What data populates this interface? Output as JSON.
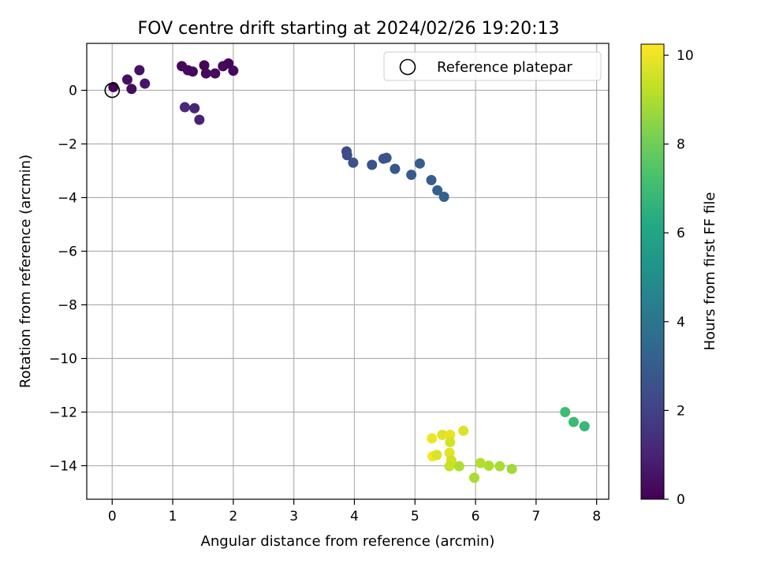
{
  "chart_data": {
    "type": "scatter",
    "title": "FOV centre drift starting at 2024/02/26 19:20:13",
    "xlabel": "Angular distance from reference (arcmin)",
    "ylabel": "Rotation from reference (arcmin)",
    "xlim": [
      -0.42,
      8.2
    ],
    "ylim": [
      -15.25,
      1.75
    ],
    "x_ticks": [
      0,
      1,
      2,
      3,
      4,
      5,
      6,
      7,
      8
    ],
    "y_ticks": [
      0,
      -2,
      -4,
      -6,
      -8,
      -10,
      -12,
      -14
    ],
    "x_tick_labels": [
      "0",
      "1",
      "2",
      "3",
      "4",
      "5",
      "6",
      "7",
      "8"
    ],
    "y_tick_labels": [
      "0",
      "−2",
      "−4",
      "−6",
      "−8",
      "−10",
      "−12",
      "−14"
    ],
    "grid": true,
    "legend": {
      "placement": "top-right",
      "entries": [
        {
          "label": "Reference platepar",
          "marker": "open-circle"
        }
      ]
    },
    "reference_point": {
      "x": 0.0,
      "y": 0.0
    },
    "colorbar": {
      "label": "Hours from first FF file",
      "colormap": "viridis",
      "range": [
        0,
        10.25
      ],
      "ticks": [
        0,
        2,
        4,
        6,
        8,
        10
      ],
      "tick_labels": [
        "0",
        "2",
        "4",
        "6",
        "8",
        "10"
      ],
      "colors": [
        "#440154",
        "#482475",
        "#414487",
        "#355f8d",
        "#2a788e",
        "#21918c",
        "#22a884",
        "#44bf70",
        "#7ad151",
        "#bddf26",
        "#fde725"
      ]
    },
    "points": [
      {
        "x": 0.02,
        "y": 0.12,
        "hours": 0.1
      },
      {
        "x": 0.25,
        "y": 0.4,
        "hours": 0.4
      },
      {
        "x": 0.32,
        "y": 0.05,
        "hours": 0.3
      },
      {
        "x": 0.45,
        "y": 0.75,
        "hours": 0.5
      },
      {
        "x": 0.54,
        "y": 0.25,
        "hours": 0.6
      },
      {
        "x": 1.15,
        "y": 0.9,
        "hours": 0.2
      },
      {
        "x": 1.25,
        "y": 0.75,
        "hours": 0.25
      },
      {
        "x": 1.33,
        "y": 0.7,
        "hours": 0.2
      },
      {
        "x": 1.52,
        "y": 0.93,
        "hours": 0.15
      },
      {
        "x": 1.55,
        "y": 0.63,
        "hours": 0.2
      },
      {
        "x": 1.7,
        "y": 0.63,
        "hours": 0.25
      },
      {
        "x": 1.83,
        "y": 0.9,
        "hours": 0.2
      },
      {
        "x": 1.92,
        "y": 1.0,
        "hours": 0.15
      },
      {
        "x": 2.0,
        "y": 0.73,
        "hours": 0.2
      },
      {
        "x": 1.2,
        "y": -0.63,
        "hours": 1.2
      },
      {
        "x": 1.36,
        "y": -0.67,
        "hours": 1.1
      },
      {
        "x": 1.44,
        "y": -1.1,
        "hours": 1.0
      },
      {
        "x": 3.87,
        "y": -2.28,
        "hours": 2.3
      },
      {
        "x": 3.88,
        "y": -2.42,
        "hours": 2.4
      },
      {
        "x": 3.98,
        "y": -2.7,
        "hours": 2.5
      },
      {
        "x": 4.29,
        "y": -2.78,
        "hours": 2.6
      },
      {
        "x": 4.48,
        "y": -2.55,
        "hours": 2.6
      },
      {
        "x": 4.53,
        "y": -2.52,
        "hours": 2.7
      },
      {
        "x": 4.67,
        "y": -2.93,
        "hours": 2.8
      },
      {
        "x": 4.94,
        "y": -3.15,
        "hours": 2.9
      },
      {
        "x": 5.08,
        "y": -2.73,
        "hours": 3.0
      },
      {
        "x": 5.27,
        "y": -3.35,
        "hours": 3.0
      },
      {
        "x": 5.37,
        "y": -3.73,
        "hours": 3.1
      },
      {
        "x": 5.48,
        "y": -3.97,
        "hours": 3.2
      },
      {
        "x": 7.48,
        "y": -12.0,
        "hours": 7.0
      },
      {
        "x": 7.62,
        "y": -12.37,
        "hours": 6.9
      },
      {
        "x": 7.8,
        "y": -12.53,
        "hours": 6.8
      },
      {
        "x": 5.28,
        "y": -12.98,
        "hours": 10.0
      },
      {
        "x": 5.45,
        "y": -12.85,
        "hours": 9.8
      },
      {
        "x": 5.58,
        "y": -12.85,
        "hours": 9.9
      },
      {
        "x": 5.8,
        "y": -12.7,
        "hours": 9.7
      },
      {
        "x": 5.58,
        "y": -13.12,
        "hours": 9.6
      },
      {
        "x": 5.57,
        "y": -13.52,
        "hours": 9.8
      },
      {
        "x": 5.29,
        "y": -13.65,
        "hours": 10.1
      },
      {
        "x": 5.36,
        "y": -13.6,
        "hours": 9.7
      },
      {
        "x": 5.6,
        "y": -13.8,
        "hours": 9.5
      },
      {
        "x": 5.57,
        "y": -14.02,
        "hours": 9.4
      },
      {
        "x": 5.73,
        "y": -14.02,
        "hours": 9.0
      },
      {
        "x": 5.98,
        "y": -14.45,
        "hours": 8.9
      },
      {
        "x": 6.08,
        "y": -13.9,
        "hours": 9.1
      },
      {
        "x": 6.22,
        "y": -14.0,
        "hours": 9.0
      },
      {
        "x": 6.4,
        "y": -14.02,
        "hours": 8.9
      },
      {
        "x": 6.6,
        "y": -14.12,
        "hours": 8.8
      }
    ]
  }
}
